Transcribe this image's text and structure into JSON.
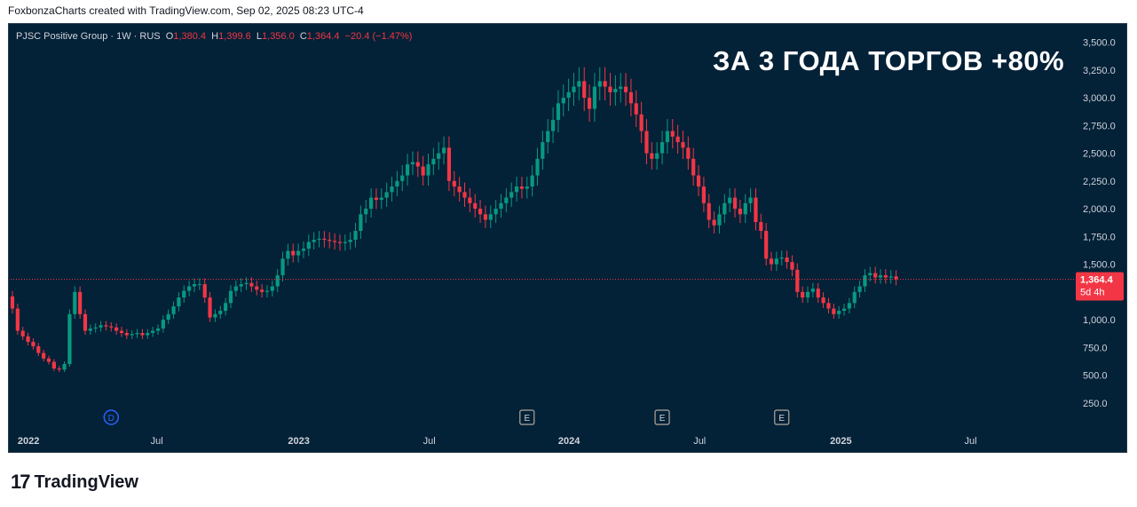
{
  "header": {
    "caption": "FoxbonzaCharts created with TradingView.com, Sep 02, 2025 08:23 UTC-4"
  },
  "legend": {
    "symbol": "PJSC Positive Group · 1W · RUS",
    "o_label": "O",
    "o_value": "1,380.4",
    "h_label": "H",
    "h_value": "1,399.6",
    "l_label": "L",
    "l_value": "1,356.0",
    "c_label": "C",
    "c_value": "1,364.4",
    "change": "−20.4 (−1.47%)"
  },
  "headline": "ЗА 3 ГОДА ТОРГОВ +80%",
  "footer": {
    "brand": "TradingView",
    "mark": "17"
  },
  "colors": {
    "background": "#032137",
    "up": "#089981",
    "down": "#f23645",
    "text": "#d1d4dc"
  },
  "chart_data": {
    "type": "candlestick",
    "interval": "1W",
    "ylim": [
      0,
      3625
    ],
    "y_ticks": [
      "250.0",
      "500.0",
      "750.0",
      "1,000.0",
      "1,250.0",
      "1,500.0",
      "1,750.0",
      "2,000.0",
      "2,250.0",
      "2,500.0",
      "2,750.0",
      "3,000.0",
      "3,250.0",
      "3,500.0"
    ],
    "x_labels": [
      "2022",
      "Jul",
      "2023",
      "Jul",
      "2024",
      "Jul",
      "2025",
      "Jul"
    ],
    "last_price": {
      "value": 1364.4,
      "label": "1,364.4",
      "countdown": "5d 4h"
    },
    "events": [
      {
        "type": "D",
        "date": "2022-05-09"
      },
      {
        "type": "E",
        "date": "2023-11-20"
      },
      {
        "type": "E",
        "date": "2024-05-20"
      },
      {
        "type": "E",
        "date": "2024-10-28"
      }
    ],
    "start_date": "2021-12-27",
    "price_path": [
      1100,
      900,
      850,
      800,
      760,
      700,
      650,
      620,
      560,
      550,
      600,
      1050,
      1250,
      1050,
      900,
      920,
      930,
      950,
      940,
      930,
      900,
      880,
      860,
      870,
      880,
      860,
      880,
      900,
      920,
      1000,
      1050,
      1120,
      1200,
      1260,
      1300,
      1320,
      1320,
      1200,
      1020,
      1050,
      1080,
      1150,
      1260,
      1300,
      1320,
      1330,
      1300,
      1270,
      1250,
      1260,
      1300,
      1400,
      1550,
      1620,
      1580,
      1620,
      1640,
      1700,
      1720,
      1730,
      1720,
      1710,
      1700,
      1690,
      1700,
      1720,
      1800,
      1950,
      2000,
      2100,
      2080,
      2100,
      2150,
      2200,
      2250,
      2300,
      2400,
      2420,
      2380,
      2300,
      2400,
      2450,
      2500,
      2550,
      2250,
      2200,
      2150,
      2100,
      2050,
      2000,
      1950,
      1900,
      1950,
      2000,
      2050,
      2100,
      2150,
      2200,
      2180,
      2200,
      2300,
      2450,
      2600,
      2700,
      2800,
      2950,
      3000,
      3050,
      3100,
      3150,
      3000,
      2900,
      3100,
      3150,
      3100,
      3050,
      3080,
      3100,
      3050,
      2950,
      2850,
      2700,
      2500,
      2450,
      2500,
      2600,
      2700,
      2650,
      2600,
      2550,
      2450,
      2300,
      2200,
      2050,
      1900,
      1850,
      1950,
      2050,
      2100,
      2000,
      1950,
      2050,
      2100,
      1880,
      1800,
      1550,
      1500,
      1550,
      1560,
      1520,
      1450,
      1250,
      1200,
      1250,
      1280,
      1200,
      1150,
      1100,
      1050,
      1080,
      1100,
      1150,
      1250,
      1300,
      1400,
      1420,
      1380,
      1400,
      1380,
      1390,
      1364.4
    ],
    "y_unit": "RUB"
  }
}
